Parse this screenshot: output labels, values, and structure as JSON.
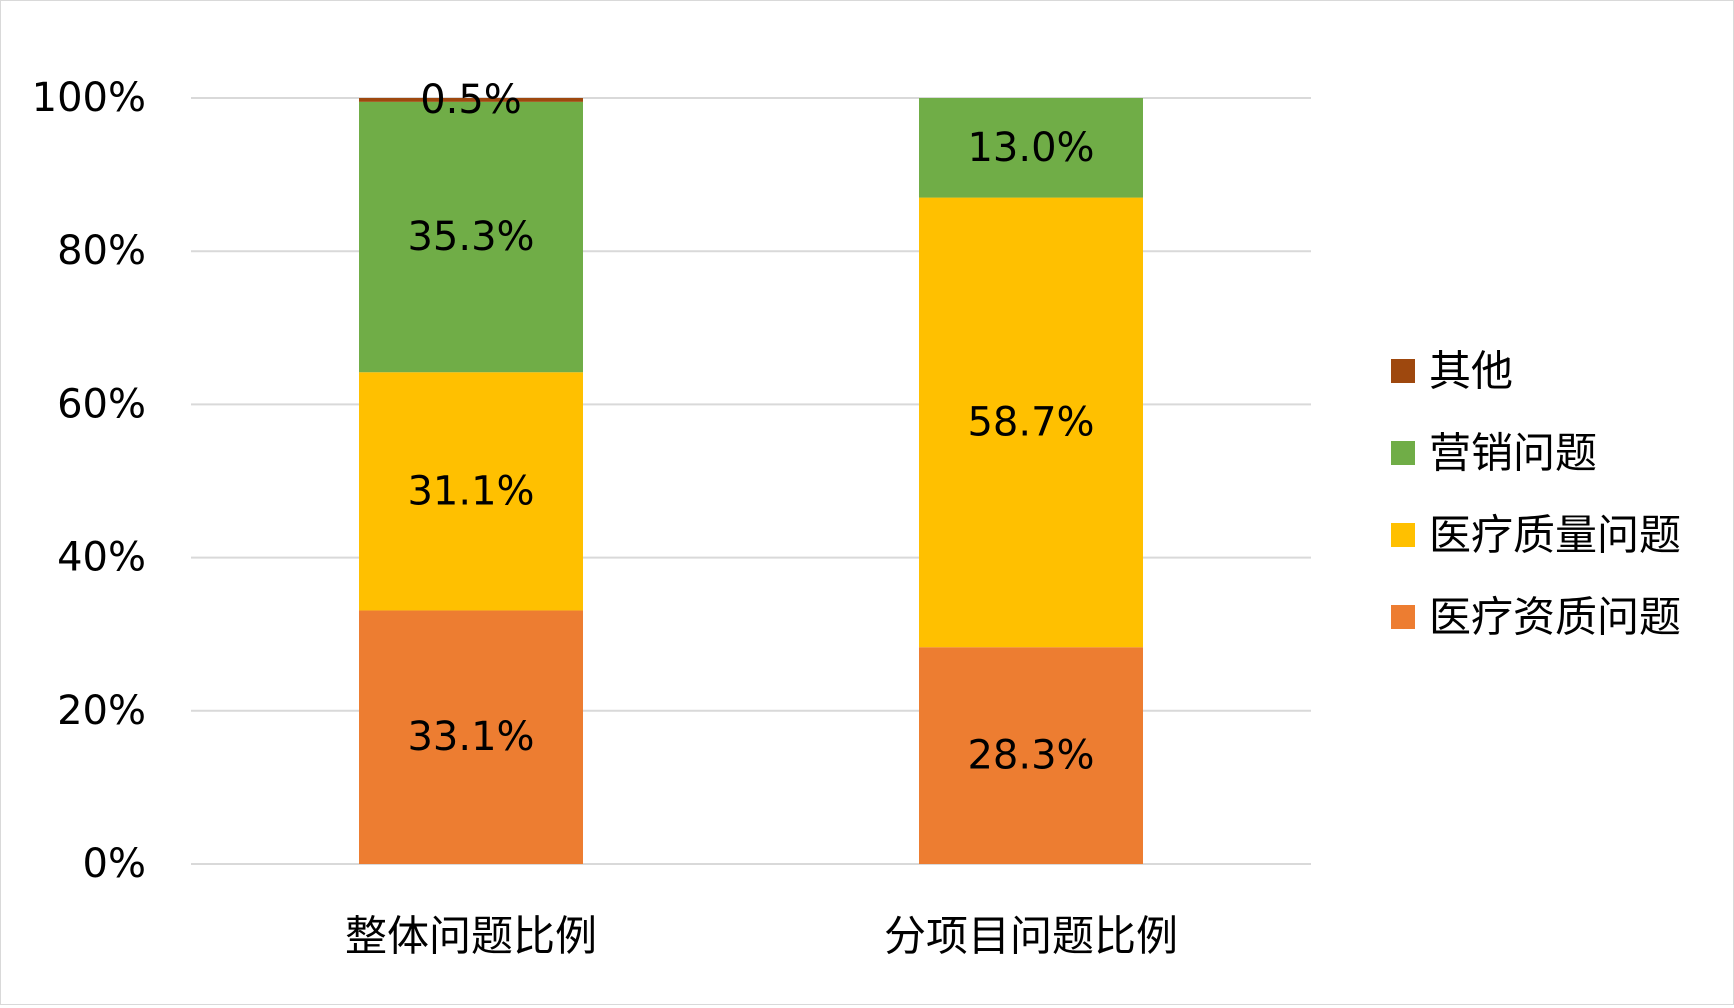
{
  "chart_data": {
    "type": "bar",
    "stacked": true,
    "percent_stacked": true,
    "categories": [
      "整体问题比例",
      "分项目问题比例"
    ],
    "series": [
      {
        "name": "医疗资质问题",
        "values": [
          33.1,
          28.3
        ],
        "labels": [
          "33.1%",
          "28.3%"
        ],
        "color": "#ED7D31"
      },
      {
        "name": "医疗质量问题",
        "values": [
          31.1,
          58.7
        ],
        "labels": [
          "31.1%",
          "58.7%"
        ],
        "color": "#FFC000"
      },
      {
        "name": "营销问题",
        "values": [
          35.3,
          13.0
        ],
        "labels": [
          "35.3%",
          "13.0%"
        ],
        "color": "#70AD47"
      },
      {
        "name": "其他",
        "values": [
          0.5,
          0
        ],
        "labels": [
          "0.5%",
          ""
        ],
        "color": "#9E480E"
      }
    ],
    "y_ticks": [
      "0%",
      "20%",
      "40%",
      "60%",
      "80%",
      "100%"
    ],
    "ylim": [
      0,
      100
    ],
    "grid": true,
    "legend": {
      "position": "right",
      "order": [
        "其他",
        "营销问题",
        "医疗质量问题",
        "医疗资质问题"
      ]
    },
    "colors": {
      "grid": "#d9d9d9",
      "text": "#000000"
    }
  }
}
